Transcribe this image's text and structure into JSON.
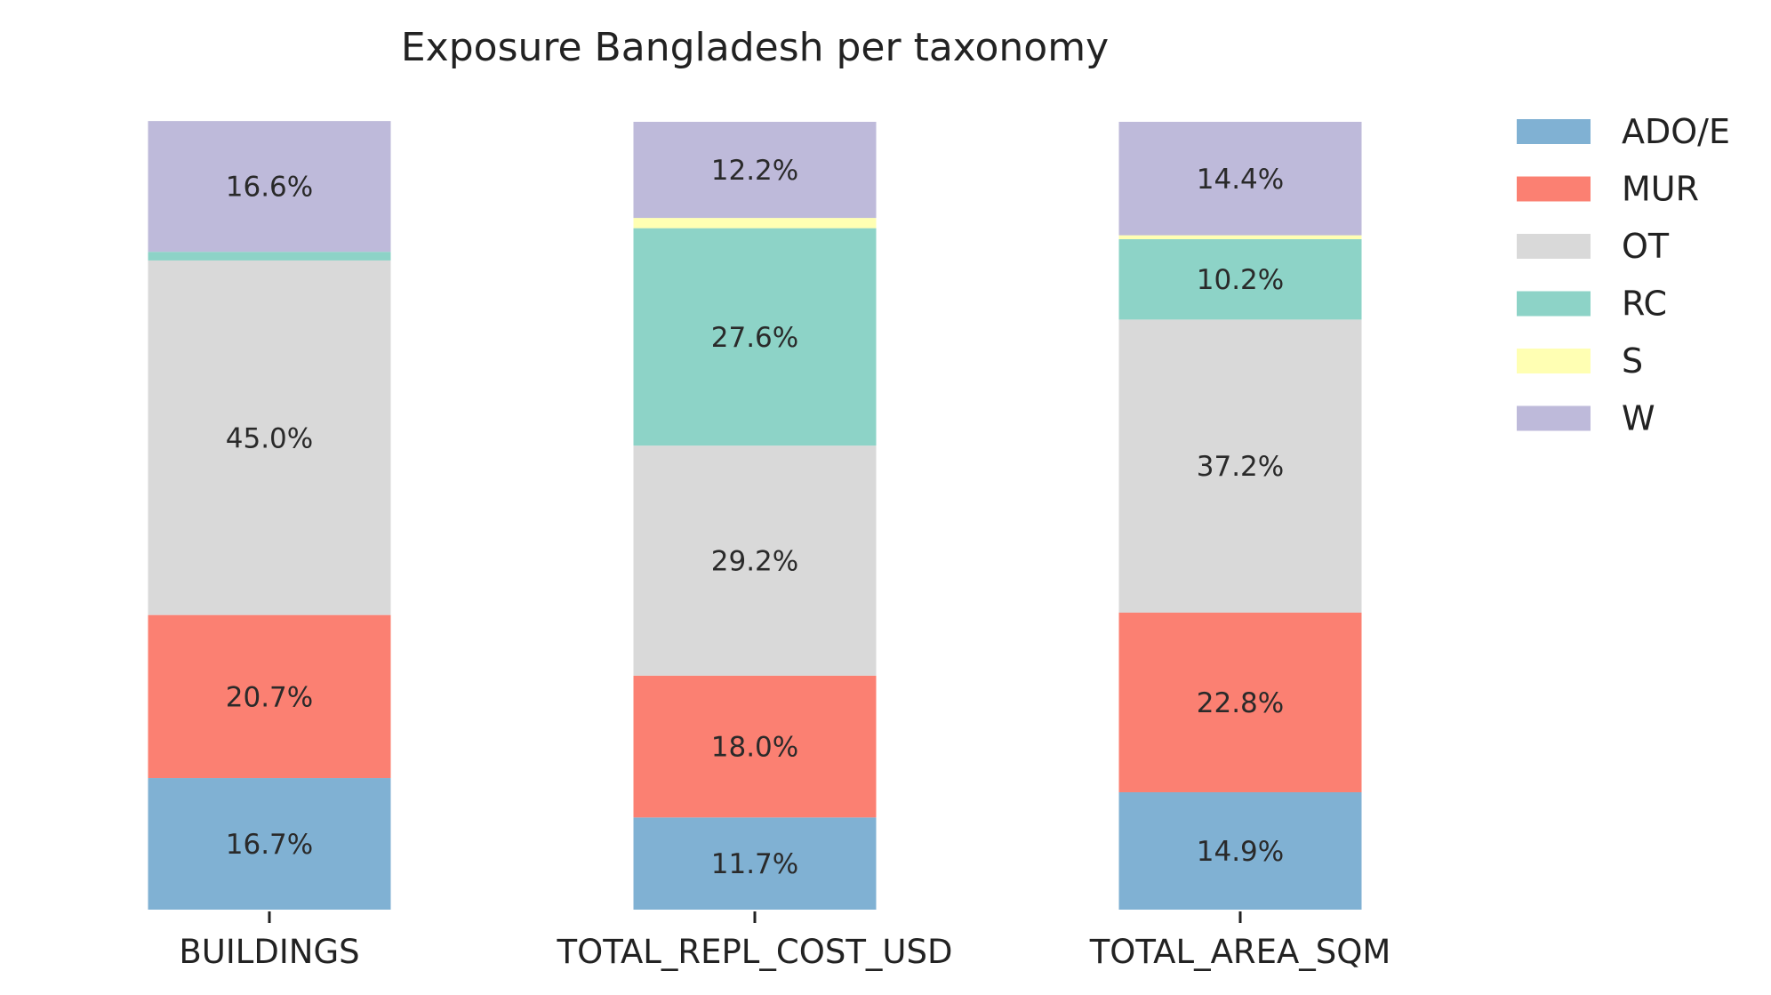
{
  "chart_data": {
    "type": "bar",
    "stacked": true,
    "percent_stacked": true,
    "title": "Exposure Bangladesh per taxonomy",
    "xlabel": "",
    "ylabel": "",
    "ylim": [
      0,
      100
    ],
    "grid": false,
    "legend_position": "top-right",
    "categories": [
      "BUILDINGS",
      "TOTAL_REPL_COST_USD",
      "TOTAL_AREA_SQM"
    ],
    "series": [
      {
        "name": "ADO/E",
        "color": "#80b1d3",
        "values": [
          16.7,
          11.7,
          14.9
        ],
        "labels": [
          "16.7%",
          "11.7%",
          "14.9%"
        ]
      },
      {
        "name": "MUR",
        "color": "#fb8072",
        "values": [
          20.7,
          18.0,
          22.8
        ],
        "labels": [
          "20.7%",
          "18.0%",
          "22.8%"
        ]
      },
      {
        "name": "OT",
        "color": "#d9d9d9",
        "values": [
          45.0,
          29.2,
          37.2
        ],
        "labels": [
          "45.0%",
          "29.2%",
          "37.2%"
        ]
      },
      {
        "name": "RC",
        "color": "#8dd3c7",
        "values": [
          1.1,
          27.6,
          10.2
        ],
        "labels": [
          "",
          "27.6%",
          "10.2%"
        ]
      },
      {
        "name": "S",
        "color": "#ffffb3",
        "values": [
          0.0,
          1.3,
          0.5
        ],
        "labels": [
          "",
          "",
          ""
        ]
      },
      {
        "name": "W",
        "color": "#bebada",
        "values": [
          16.6,
          12.2,
          14.4
        ],
        "labels": [
          "16.6%",
          "12.2%",
          "14.4%"
        ]
      }
    ]
  }
}
